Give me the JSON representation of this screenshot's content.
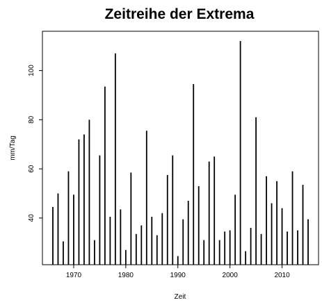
{
  "chart_data": {
    "type": "bar",
    "title": "Zeitreihe der Extrema",
    "xlabel": "Zeit",
    "ylabel": "mm/Tag",
    "xlim": [
      1964,
      2017
    ],
    "ylim": [
      21,
      116
    ],
    "x_ticks": [
      1970,
      1980,
      1990,
      2000,
      2010
    ],
    "y_ticks": [
      40,
      60,
      80,
      100
    ],
    "x": [
      1966,
      1967,
      1968,
      1969,
      1970,
      1971,
      1972,
      1973,
      1974,
      1975,
      1976,
      1977,
      1978,
      1979,
      1980,
      1981,
      1982,
      1983,
      1984,
      1985,
      1986,
      1987,
      1988,
      1989,
      1990,
      1991,
      1992,
      1993,
      1994,
      1995,
      1996,
      1997,
      1998,
      1999,
      2000,
      2001,
      2002,
      2003,
      2004,
      2005,
      2006,
      2007,
      2008,
      2009,
      2010,
      2011,
      2012,
      2013,
      2014,
      2015
    ],
    "values": [
      44.5,
      50,
      30.5,
      59,
      49.5,
      72,
      74,
      80,
      31,
      65.5,
      93.5,
      40.5,
      107,
      43.5,
      27,
      58.5,
      33.5,
      37,
      75.5,
      40.5,
      33,
      42,
      57.5,
      65.5,
      24.5,
      39.5,
      47,
      94.5,
      53,
      31,
      63,
      65,
      31,
      34.5,
      35,
      49.5,
      112,
      26.5,
      36,
      81,
      33.5,
      57,
      46,
      55,
      44,
      34.5,
      59,
      35,
      53.5,
      39.5
    ],
    "grid": false
  }
}
